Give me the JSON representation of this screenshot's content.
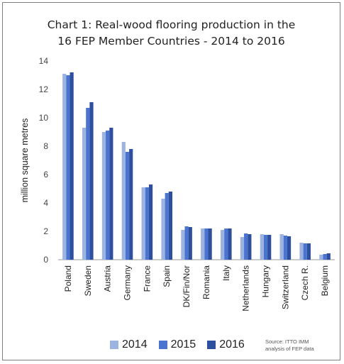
{
  "chart_data": {
    "type": "bar",
    "title_line1": "Chart 1: Real-wood flooring production in the",
    "title_line2": "16 FEP Member Countries - 2014 to 2016",
    "xlabel": "",
    "ylabel": "million square metres",
    "ylim": [
      0,
      14
    ],
    "yticks": [
      0,
      2,
      4,
      6,
      8,
      10,
      12,
      14
    ],
    "grid": false,
    "legend_position": "bottom",
    "categories": [
      "Poland",
      "Sweden",
      "Austria",
      "Germany",
      "France",
      "Spain",
      "DK/Fin/Nor",
      "Romania",
      "Italy",
      "Netherlands",
      "Hungary",
      "Switzerland",
      "Czech R.",
      "Belgium"
    ],
    "series": [
      {
        "name": "2014",
        "color": "#9db3e0",
        "values": [
          13.1,
          9.3,
          9.0,
          8.3,
          5.1,
          4.3,
          2.1,
          2.2,
          2.1,
          1.6,
          1.8,
          1.8,
          1.2,
          0.35
        ]
      },
      {
        "name": "2015",
        "color": "#4a74d0",
        "values": [
          13.0,
          10.7,
          9.1,
          7.6,
          5.1,
          4.7,
          2.35,
          2.2,
          2.2,
          1.85,
          1.75,
          1.7,
          1.15,
          0.4
        ]
      },
      {
        "name": "2016",
        "color": "#2e4f9e",
        "values": [
          13.2,
          11.1,
          9.3,
          7.8,
          5.3,
          4.8,
          2.3,
          2.2,
          2.2,
          1.8,
          1.75,
          1.65,
          1.15,
          0.45
        ]
      }
    ],
    "source_line1": "Source: ITTO IMM",
    "source_line2": "analysis of FEP data"
  }
}
